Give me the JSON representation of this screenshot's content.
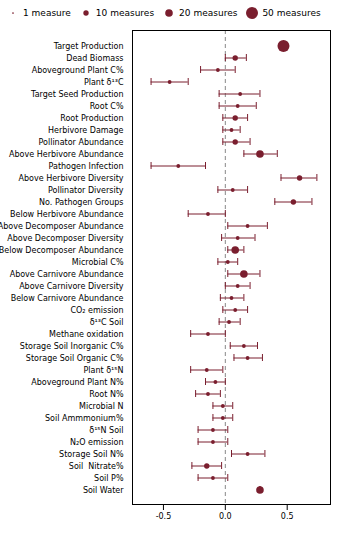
{
  "chart_data": {
    "type": "forest",
    "categories": [
      "Target Production",
      "Dead Biomass",
      "Aboveground Plant C%",
      "Plant δ¹³C",
      "Target Seed Production",
      "Root C%",
      "Root Production",
      "Herbivore Damage",
      "Pollinator Abundance",
      "Above Herbivore Abundance",
      "Pathogen Infection",
      "Above Herbivore Diversity",
      "Pollinator Diversity",
      "No. Pathogen Groups",
      "Below Herbivore Abundance",
      "Above Decomposer Abundance",
      "Above Decomposer Diversity",
      "Below Decomposer Abundance",
      "Microbial C%",
      "Above Carnivore Abundance",
      "Above Carnivore Diversity",
      "Below Carnivore Abundance",
      "CO₂ emission",
      "δ¹³C Soil",
      "Methane oxidation",
      "Storage Soil Inorganic C%",
      "Storage Soil Organic C%",
      "Plant δ¹⁵N",
      "Aboveground Plant N%",
      "Root N%",
      "Microbial N",
      "Soil Ammmonium%",
      "δ¹⁵N Soil",
      "N₂O emission",
      "Storage Soil N%",
      "Soil  Nitrate%",
      "Soil P%",
      "Soil Water"
    ],
    "values": [
      0.47,
      0.08,
      -0.06,
      -0.45,
      0.12,
      0.1,
      0.08,
      0.05,
      0.08,
      0.28,
      -0.38,
      0.6,
      0.06,
      0.55,
      -0.14,
      0.18,
      0.1,
      0.08,
      0.02,
      0.15,
      0.1,
      0.05,
      0.08,
      0.03,
      -0.14,
      0.15,
      0.18,
      -0.15,
      -0.08,
      -0.14,
      -0.02,
      -0.02,
      -0.1,
      -0.1,
      0.18,
      -0.15,
      -0.1,
      0.28
    ],
    "ci_low": [
      0.47,
      0.0,
      -0.2,
      -0.6,
      -0.05,
      -0.05,
      -0.02,
      -0.02,
      -0.02,
      0.15,
      -0.6,
      0.45,
      -0.06,
      0.4,
      -0.3,
      0.02,
      -0.03,
      0.02,
      -0.06,
      0.02,
      0.0,
      -0.04,
      -0.02,
      -0.05,
      -0.28,
      0.04,
      0.07,
      -0.28,
      -0.16,
      -0.24,
      -0.1,
      -0.1,
      -0.22,
      -0.22,
      0.05,
      -0.27,
      -0.22,
      0.28
    ],
    "ci_high": [
      0.47,
      0.17,
      0.08,
      -0.3,
      0.28,
      0.25,
      0.18,
      0.12,
      0.2,
      0.42,
      -0.16,
      0.74,
      0.18,
      0.7,
      0.0,
      0.34,
      0.24,
      0.15,
      0.1,
      0.28,
      0.2,
      0.15,
      0.18,
      0.12,
      0.0,
      0.26,
      0.3,
      -0.02,
      0.0,
      -0.04,
      0.06,
      0.06,
      0.02,
      0.02,
      0.32,
      -0.03,
      0.02,
      0.28
    ],
    "sizes": [
      50,
      10,
      5,
      5,
      5,
      5,
      10,
      5,
      10,
      20,
      5,
      10,
      5,
      10,
      5,
      5,
      5,
      20,
      5,
      20,
      5,
      5,
      5,
      5,
      5,
      5,
      5,
      5,
      5,
      5,
      5,
      5,
      5,
      5,
      5,
      10,
      5,
      20
    ],
    "color": "#7a1e2e",
    "xlim": [
      -0.75,
      0.85
    ],
    "xticks": [
      -0.5,
      {
        "value": 0,
        "label": "0.0"
      },
      0.5
    ],
    "reference_x": 0,
    "legend_sizes": [
      1,
      10,
      20,
      50
    ],
    "legend_labels": [
      "1 measure",
      "10 measures",
      "20 measures",
      "50 measures"
    ]
  }
}
